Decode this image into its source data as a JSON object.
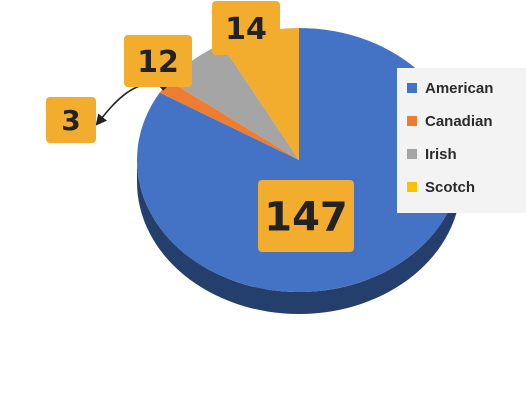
{
  "chart_data": {
    "type": "pie",
    "title": "",
    "categories": [
      "American",
      "Canadian",
      "Irish",
      "Scotch"
    ],
    "values": [
      147,
      3,
      12,
      14
    ],
    "data_labels": [
      "147",
      "3",
      "12",
      "14"
    ],
    "colors": [
      "#4472C4",
      "#ED7D31",
      "#A5A5A5",
      "#F2AC2E"
    ],
    "legend_position": "right",
    "style": "3d-tilted",
    "label_box_color": "#F2AC2E"
  },
  "legend": {
    "items": [
      {
        "label": "American",
        "color": "#4472C4"
      },
      {
        "label": "Canadian",
        "color": "#ED7D31"
      },
      {
        "label": "Irish",
        "color": "#A5A5A5"
      },
      {
        "label": "Scotch",
        "color": "#FFC000"
      }
    ]
  }
}
